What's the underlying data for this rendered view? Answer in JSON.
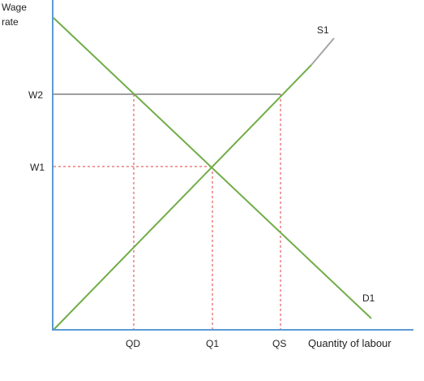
{
  "y_axis_label": [
    "Wage",
    "rate"
  ],
  "x_axis_label": "Quantity of labour",
  "curves": {
    "supply_label": "S1",
    "demand_label": "D1"
  },
  "wage_levels": {
    "w1": "W1",
    "w2": "W2"
  },
  "quantity_levels": {
    "qd": "QD",
    "q1": "Q1",
    "qs": "QS"
  },
  "colors": {
    "axis": "#5b9bd5",
    "supply_demand": "#70ad47",
    "supply_extension": "#a5a5a5",
    "wage_floor_line": "#7f7f7f",
    "guide_lines": "#e03c3c",
    "text": "#222222"
  }
}
